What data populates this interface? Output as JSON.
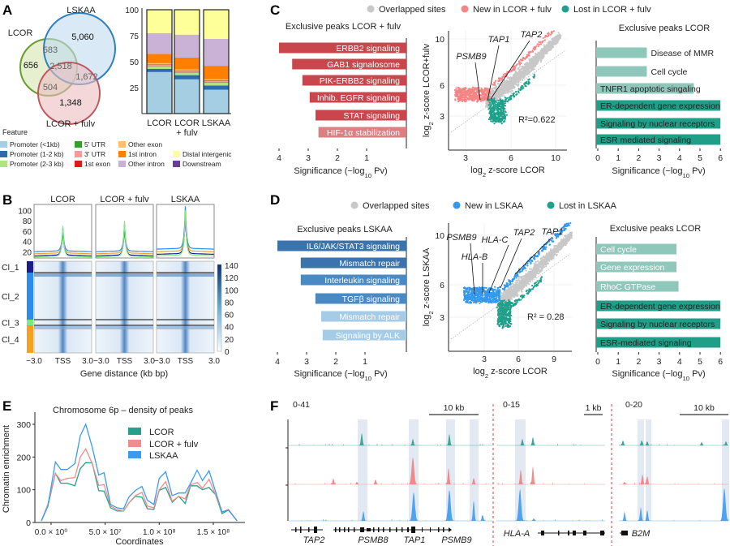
{
  "panel_labels": {
    "A": "A",
    "B": "B",
    "C": "C",
    "D": "D",
    "E": "E",
    "F": "F"
  },
  "chart_data": [
    {
      "panel": "A",
      "type": "venn",
      "sets": [
        {
          "name": "LCOR",
          "color": "#6b9a2e",
          "fill": "#d5e6b3"
        },
        {
          "name": "LSKAA",
          "color": "#2f7fc1",
          "fill": "#bfdaee"
        },
        {
          "name": "LCOR + fulv",
          "color": "#c0575f",
          "fill": "#ebbcc0"
        }
      ],
      "regions": {
        "LCOR_only": "656",
        "LSKAA_only": "5,060",
        "LCOR_fulv_only": "1,348",
        "LCOR_and_LSKAA": "583",
        "all_three": "2,518",
        "LSKAA_and_LCOR_fulv": "1,672",
        "LCOR_and_LCOR_fulv": "504"
      }
    },
    {
      "panel": "A",
      "type": "bar",
      "stacked": true,
      "categories": [
        "LCOR",
        "LCOR + fulv",
        "LSKAA"
      ],
      "ylim": [
        0,
        100
      ],
      "yticks": [
        25,
        50,
        75,
        100
      ],
      "legend_title": "Feature",
      "series": [
        {
          "name": "Promoter (<1kb)",
          "color": "#a6cee3",
          "values": [
            40,
            33,
            23
          ]
        },
        {
          "name": "Promoter (1-2 kb)",
          "color": "#2b6cb0",
          "values": [
            3,
            4,
            4
          ]
        },
        {
          "name": "Promoter (2-3 kb)",
          "color": "#b2df8a",
          "values": [
            2.5,
            2.5,
            3
          ]
        },
        {
          "name": "5' UTR",
          "color": "#33a02c",
          "values": [
            0.5,
            0.5,
            0.5
          ]
        },
        {
          "name": "3' UTR",
          "color": "#fb9a99",
          "values": [
            1,
            1,
            1
          ]
        },
        {
          "name": "1st exon",
          "color": "#e31a1c",
          "values": [
            0.5,
            0.5,
            0.5
          ]
        },
        {
          "name": "Other exon",
          "color": "#fdbf6f",
          "values": [
            1,
            1,
            1
          ]
        },
        {
          "name": "1st intron",
          "color": "#ff7f00",
          "values": [
            9,
            11.5,
            13
          ]
        },
        {
          "name": "Other intron",
          "color": "#cab2d6",
          "values": [
            20,
            22,
            26
          ]
        },
        {
          "name": "Distal intergenic",
          "color": "#ffff99",
          "values": [
            22.5,
            24,
            28
          ]
        },
        {
          "name": "Downstream",
          "color": "#6a3d9a",
          "values": [
            0,
            0,
            0
          ]
        }
      ]
    },
    {
      "panel": "B",
      "type": "heatmap",
      "columns": [
        "LCOR",
        "LCOR + fulv",
        "LSKAA"
      ],
      "clusters": [
        {
          "name": "Cl_1",
          "color": "#1c1c8f"
        },
        {
          "name": "Cl_2",
          "color": "#2a8cf0"
        },
        {
          "name": "Cl_3",
          "color": "#80e880"
        },
        {
          "name": "Cl_4",
          "color": "#f5a020"
        }
      ],
      "profile_yticks": [
        20,
        40,
        60,
        80,
        100
      ],
      "profiles": [
        {
          "column": "LCOR",
          "flank": [
            12,
            20,
            10,
            16
          ],
          "peak": [
            62,
            65,
            68,
            60
          ]
        },
        {
          "column": "LCOR + fulv",
          "flank": [
            12,
            20,
            10,
            16
          ],
          "peak": [
            70,
            72,
            78,
            66
          ]
        },
        {
          "column": "LSKAA",
          "flank": [
            15,
            25,
            12,
            20
          ],
          "peak": [
            95,
            106,
            98,
            96
          ]
        }
      ],
      "colorbar_ticks": [
        0,
        20,
        40,
        60,
        80,
        100,
        120,
        140
      ],
      "colorbar_color": "#08306b",
      "xticks": [
        "−3.0",
        "TSS",
        "3.0"
      ],
      "xlabel": "Gene distance (kb bp)"
    },
    {
      "panel": "C",
      "type": "bar",
      "orientation": "horizontal",
      "reversed_x": true,
      "title": "Exclusive peaks LCOR + fulv",
      "xlabel": "Significance (−log10 Pv)",
      "xticks": [
        1,
        2,
        3,
        4
      ],
      "categories": [
        "ERBB2 signaling",
        "GAB1 signalosome",
        "PIK-ERBB2 signaling",
        "Inhib. EGFR signaling",
        "STAT signaling",
        "HIF-1α stabilization"
      ],
      "values": [
        4.0,
        3.55,
        3.2,
        2.95,
        2.75,
        2.65
      ],
      "colors": [
        "#c9474c",
        "#c9474c",
        "#c9474c",
        "#c9474c",
        "#c9474c",
        "#dc7f83"
      ]
    },
    {
      "panel": "C",
      "type": "scatter",
      "legend": [
        {
          "name": "Overlapped sites",
          "color": "#c8c8c8"
        },
        {
          "name": "New in LCOR + fulv",
          "color": "#f58585"
        },
        {
          "name": "Lost in LCOR + fulv",
          "color": "#1fa08a"
        }
      ],
      "xlabel": "log2 z-score LCOR",
      "ylabel": "log2 z-score LCOR+fulv",
      "xticks": [
        3,
        6,
        10
      ],
      "yticks": [
        3,
        6,
        10
      ],
      "annotations": [
        "PSMB9",
        "TAP1",
        "TAP2"
      ],
      "r2": "R²=0.622"
    },
    {
      "panel": "C",
      "type": "bar",
      "orientation": "horizontal",
      "title": "Exclusive peaks LCOR",
      "xlabel": "Significance (−log10 Pv)",
      "xticks": [
        0,
        1,
        2,
        3,
        4,
        5,
        6
      ],
      "categories": [
        "Disease of MMR",
        "Cell cycle",
        "TNFR1 apoptotic singaling",
        "ER-dependent gene expression",
        "Signaling by nuclear receptors",
        "ESR mediated signaling"
      ],
      "values": [
        2.4,
        2.4,
        4.7,
        6,
        6,
        6
      ],
      "colors": [
        "#8fc7bb",
        "#8fc7bb",
        "#8fc7bb",
        "#1f9e88",
        "#1f9e88",
        "#1f9e88"
      ]
    },
    {
      "panel": "D",
      "type": "bar",
      "orientation": "horizontal",
      "reversed_x": true,
      "title": "Exclusive peaks LSKAA",
      "xlabel": "Significance (−log10 Pv)",
      "xticks": [
        1,
        2,
        3,
        4
      ],
      "categories": [
        "IL6/JAK/STAT3 signaling",
        "Mismatch repair",
        "Interleukin signaling",
        "TGFβ signaling",
        "Mismatch repair",
        "Signaling by ALK"
      ],
      "values": [
        4.0,
        3.2,
        3.2,
        2.7,
        2.5,
        2.45
      ],
      "colors": [
        "#3b73ad",
        "#3b73ad",
        "#4a8ac4",
        "#4a8ac4",
        "#a6cbe6",
        "#a6cbe6"
      ]
    },
    {
      "panel": "D",
      "type": "scatter",
      "legend": [
        {
          "name": "Overlapped sites",
          "color": "#c8c8c8"
        },
        {
          "name": "New in LSKAA",
          "color": "#3399ee"
        },
        {
          "name": "Lost in LSKAA",
          "color": "#1fa08a"
        }
      ],
      "xlabel": "log2 z-score LCOR",
      "ylabel": "log2 z-score LSKAA",
      "xticks": [
        3,
        6,
        9
      ],
      "yticks": [
        3,
        6,
        10
      ],
      "annotations": [
        "PSMB9",
        "HLA-B",
        "HLA-C",
        "TAP2",
        "TAP1"
      ],
      "r2": "R² = 0.28"
    },
    {
      "panel": "D",
      "type": "bar",
      "orientation": "horizontal",
      "title": "Exclusive peaks LCOR",
      "xlabel": "Significance (−log10 Pv)",
      "xticks": [
        0,
        1,
        2,
        3,
        4,
        5,
        6
      ],
      "categories": [
        "Cell cycle",
        "Gene expression",
        "RhoC GTPase",
        "ER-dependent gene expression",
        "Signaling by nuclear receptors",
        "ESR-mediated signaling"
      ],
      "values": [
        3.85,
        3.85,
        3.95,
        6,
        6,
        6
      ],
      "colors": [
        "#8fc7bb",
        "#8fc7bb",
        "#8fc7bb",
        "#1f9e88",
        "#1f9e88",
        "#1f9e88"
      ]
    },
    {
      "panel": "E",
      "type": "line",
      "title": "Chromosome 6p – density of peaks",
      "xlabel": "Coordinates",
      "ylabel": "Chromatin enrichment",
      "xticks": [
        {
          "value": 0,
          "label": "0.0 × 10⁰"
        },
        {
          "value": 50000000,
          "label": "5.0 × 10⁷"
        },
        {
          "value": 100000000,
          "label": "1.0 × 10⁸"
        },
        {
          "value": 150000000,
          "label": "1.5 × 10⁸"
        }
      ],
      "yticks": [
        0,
        100,
        200,
        300
      ],
      "ylim": [
        0,
        330
      ],
      "legend": "top-right",
      "x": [
        -9000000,
        -3000000,
        4000000,
        9000000,
        15000000,
        22000000,
        27000000,
        32000000,
        38000000,
        44000000,
        49000000,
        55000000,
        61000000,
        67000000,
        72000000,
        78000000,
        84000000,
        89000000,
        95000000,
        100000000,
        106000000,
        112000000,
        118000000,
        124000000,
        129000000,
        135000000,
        140000000,
        146000000,
        152000000,
        158000000,
        164000000,
        172000000
      ],
      "series": [
        {
          "name": "LCOR",
          "color": "#26a08a",
          "values": [
            5,
            50,
            150,
            120,
            120,
            112,
            165,
            183,
            182,
            97,
            96,
            45,
            35,
            35,
            60,
            80,
            77,
            42,
            40,
            98,
            107,
            62,
            80,
            58,
            112,
            112,
            100,
            107,
            85,
            27,
            38,
            5
          ]
        },
        {
          "name": "LCOR + fulv",
          "color": "#f28b8b",
          "values": [
            5,
            55,
            150,
            128,
            135,
            137,
            200,
            225,
            180,
            113,
            116,
            50,
            40,
            35,
            60,
            82,
            92,
            50,
            45,
            100,
            125,
            65,
            80,
            72,
            115,
            122,
            105,
            132,
            85,
            32,
            40,
            5
          ]
        },
        {
          "name": "LSKAA",
          "color": "#3c9bf0",
          "values": [
            5,
            50,
            185,
            162,
            162,
            180,
            265,
            300,
            230,
            145,
            152,
            55,
            45,
            42,
            78,
            98,
            110,
            68,
            55,
            135,
            155,
            82,
            90,
            90,
            120,
            160,
            128,
            158,
            95,
            32,
            38,
            5
          ]
        }
      ]
    },
    {
      "panel": "F",
      "type": "genome-tracks",
      "track_colors": [
        "#26a08a",
        "#f08080",
        "#3c9bf0"
      ],
      "highlight_color": "#e3e9f3",
      "regions": [
        {
          "range": "0-41",
          "scale": "10 kb",
          "genes": [
            "TAP2",
            "PSMB8",
            "TAP1",
            "PSMB9"
          ]
        },
        {
          "range": "0-15",
          "scale": "1 kb",
          "genes": [
            "HLA-A"
          ]
        },
        {
          "range": "0-20",
          "scale": "10 kb",
          "genes": [
            "B2M"
          ]
        }
      ]
    }
  ]
}
